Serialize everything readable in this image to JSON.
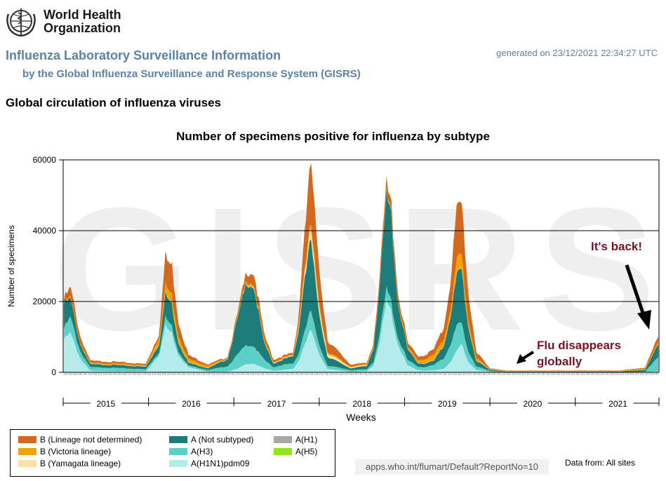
{
  "header": {
    "org_name_line1": "World Health",
    "org_name_line2": "Organization",
    "title": "Influenza Laboratory Surveillance Information",
    "subtitle": "by the Global Influenza Surveillance and Response System (GISRS)",
    "generated": "generated on 23/12/2021 22:34:27 UTC",
    "section_title": "Global circulation of influenza viruses"
  },
  "footer": {
    "report_url": "apps.who.int/flumart/Default?ReportNo=10",
    "data_from": "Data from: All sites"
  },
  "colors": {
    "b_not_determined": "#d2691e",
    "b_victoria": "#f5a20a",
    "b_yamagata": "#fce0a8",
    "a_not_subtyped": "#1b7c79",
    "a_h3": "#5ccfc8",
    "a_h1n1pdm09": "#b4ecec",
    "a_h1": "#a8a8a8",
    "a_h5": "#8ce61a",
    "annotation_text": "#7a1020",
    "grid": "#000000",
    "title_blue": "#5b82a8"
  },
  "chart_data": {
    "type": "area",
    "stacked": true,
    "title": "Number of specimens positive for influenza by subtype",
    "xlabel": "Weeks",
    "ylabel": "Number of specimens",
    "ylim": [
      0,
      60000
    ],
    "yticks": [
      0,
      20000,
      40000,
      60000
    ],
    "year_labels": [
      "2015",
      "2016",
      "2017",
      "2018",
      "2019",
      "2020",
      "2021"
    ],
    "grid": true,
    "watermark": "GISRS",
    "week_start": "2015-W01",
    "week_end": "2021-W51",
    "legend_position": "bottom-left",
    "annotations": [
      {
        "text": "It's back!",
        "week_index": 360
      },
      {
        "text": "Flu disappears globally",
        "week_index": 268
      }
    ],
    "series": [
      {
        "name": "A(H1N1)pdm09",
        "color_key": "a_h1n1pdm09",
        "anchors": [
          [
            0,
            9500
          ],
          [
            4,
            11000
          ],
          [
            10,
            4000
          ],
          [
            16,
            500
          ],
          [
            32,
            300
          ],
          [
            50,
            300
          ],
          [
            58,
            5000
          ],
          [
            62,
            13000
          ],
          [
            66,
            11000
          ],
          [
            70,
            5000
          ],
          [
            76,
            1500
          ],
          [
            88,
            200
          ],
          [
            100,
            300
          ],
          [
            106,
            1000
          ],
          [
            112,
            2500
          ],
          [
            116,
            2500
          ],
          [
            122,
            1200
          ],
          [
            128,
            500
          ],
          [
            134,
            700
          ],
          [
            140,
            1000
          ],
          [
            143,
            3000
          ],
          [
            147,
            8000
          ],
          [
            151,
            12000
          ],
          [
            155,
            6000
          ],
          [
            161,
            1000
          ],
          [
            175,
            200
          ],
          [
            185,
            400
          ],
          [
            189,
            2000
          ],
          [
            193,
            9000
          ],
          [
            197,
            20000
          ],
          [
            200,
            17000
          ],
          [
            204,
            8000
          ],
          [
            210,
            2000
          ],
          [
            216,
            700
          ],
          [
            220,
            500
          ],
          [
            226,
            600
          ],
          [
            232,
            1000
          ],
          [
            236,
            3000
          ],
          [
            240,
            6000
          ],
          [
            243,
            8000
          ],
          [
            247,
            3000
          ],
          [
            252,
            700
          ],
          [
            260,
            200
          ],
          [
            270,
            50
          ],
          [
            340,
            20
          ],
          [
            355,
            50
          ],
          [
            363,
            300
          ]
        ]
      },
      {
        "name": "A(H3)",
        "color_key": "a_h3",
        "anchors": [
          [
            0,
            3000
          ],
          [
            4,
            4500
          ],
          [
            10,
            2000
          ],
          [
            16,
            1000
          ],
          [
            32,
            1000
          ],
          [
            50,
            600
          ],
          [
            58,
            800
          ],
          [
            62,
            2500
          ],
          [
            66,
            2000
          ],
          [
            70,
            1000
          ],
          [
            76,
            500
          ],
          [
            88,
            500
          ],
          [
            100,
            1500
          ],
          [
            106,
            4000
          ],
          [
            112,
            5500
          ],
          [
            116,
            5000
          ],
          [
            122,
            2500
          ],
          [
            128,
            1000
          ],
          [
            134,
            1500
          ],
          [
            140,
            1500
          ],
          [
            143,
            2000
          ],
          [
            147,
            4000
          ],
          [
            151,
            5500
          ],
          [
            155,
            3000
          ],
          [
            161,
            1000
          ],
          [
            175,
            500
          ],
          [
            185,
            500
          ],
          [
            189,
            1000
          ],
          [
            193,
            2500
          ],
          [
            197,
            3500
          ],
          [
            200,
            3000
          ],
          [
            204,
            2000
          ],
          [
            210,
            1500
          ],
          [
            216,
            1000
          ],
          [
            220,
            1000
          ],
          [
            226,
            1500
          ],
          [
            232,
            3000
          ],
          [
            236,
            5000
          ],
          [
            240,
            7000
          ],
          [
            243,
            6000
          ],
          [
            247,
            3000
          ],
          [
            252,
            1000
          ],
          [
            260,
            300
          ],
          [
            270,
            100
          ],
          [
            340,
            50
          ],
          [
            355,
            200
          ],
          [
            363,
            4000
          ]
        ]
      },
      {
        "name": "A(H1)",
        "color_key": "a_h1",
        "anchors": [
          [
            0,
            0
          ],
          [
            363,
            0
          ]
        ]
      },
      {
        "name": "A(H5)",
        "color_key": "a_h5",
        "anchors": [
          [
            0,
            0
          ],
          [
            363,
            0
          ]
        ]
      },
      {
        "name": "A (Not subtyped)",
        "color_key": "a_not_subtyped",
        "anchors": [
          [
            0,
            7000
          ],
          [
            4,
            5000
          ],
          [
            10,
            2000
          ],
          [
            16,
            800
          ],
          [
            32,
            800
          ],
          [
            50,
            700
          ],
          [
            58,
            2200
          ],
          [
            62,
            6500
          ],
          [
            66,
            6000
          ],
          [
            70,
            2500
          ],
          [
            76,
            700
          ],
          [
            88,
            500
          ],
          [
            100,
            2000
          ],
          [
            106,
            10000
          ],
          [
            112,
            18000
          ],
          [
            116,
            17000
          ],
          [
            122,
            5000
          ],
          [
            128,
            1000
          ],
          [
            134,
            1500
          ],
          [
            140,
            2000
          ],
          [
            143,
            6000
          ],
          [
            147,
            15000
          ],
          [
            151,
            20000
          ],
          [
            155,
            10000
          ],
          [
            161,
            2500
          ],
          [
            175,
            500
          ],
          [
            185,
            900
          ],
          [
            189,
            4000
          ],
          [
            193,
            14000
          ],
          [
            197,
            26000
          ],
          [
            200,
            24000
          ],
          [
            204,
            10000
          ],
          [
            210,
            3000
          ],
          [
            216,
            1000
          ],
          [
            220,
            1000
          ],
          [
            226,
            1200
          ],
          [
            232,
            3500
          ],
          [
            236,
            8000
          ],
          [
            240,
            14000
          ],
          [
            243,
            15000
          ],
          [
            247,
            7000
          ],
          [
            252,
            1500
          ],
          [
            260,
            300
          ],
          [
            270,
            100
          ],
          [
            340,
            200
          ],
          [
            355,
            500
          ],
          [
            363,
            3500
          ]
        ]
      },
      {
        "name": "B (Yamagata lineage)",
        "color_key": "b_yamagata",
        "anchors": [
          [
            0,
            100
          ],
          [
            4,
            100
          ],
          [
            16,
            100
          ],
          [
            50,
            100
          ],
          [
            62,
            200
          ],
          [
            66,
            200
          ],
          [
            76,
            100
          ],
          [
            100,
            100
          ],
          [
            112,
            200
          ],
          [
            116,
            300
          ],
          [
            128,
            200
          ],
          [
            140,
            200
          ],
          [
            147,
            2000
          ],
          [
            151,
            3000
          ],
          [
            155,
            2500
          ],
          [
            161,
            1000
          ],
          [
            175,
            300
          ],
          [
            197,
            200
          ],
          [
            216,
            100
          ],
          [
            240,
            200
          ],
          [
            243,
            200
          ],
          [
            260,
            50
          ],
          [
            363,
            50
          ]
        ]
      },
      {
        "name": "B (Victoria lineage)",
        "color_key": "b_victoria",
        "anchors": [
          [
            0,
            200
          ],
          [
            4,
            400
          ],
          [
            16,
            300
          ],
          [
            50,
            300
          ],
          [
            62,
            2500
          ],
          [
            66,
            2500
          ],
          [
            76,
            1000
          ],
          [
            100,
            200
          ],
          [
            112,
            700
          ],
          [
            116,
            600
          ],
          [
            128,
            300
          ],
          [
            140,
            300
          ],
          [
            147,
            1000
          ],
          [
            151,
            1200
          ],
          [
            155,
            1000
          ],
          [
            161,
            500
          ],
          [
            175,
            200
          ],
          [
            197,
            500
          ],
          [
            210,
            500
          ],
          [
            216,
            800
          ],
          [
            226,
            1500
          ],
          [
            236,
            2000
          ],
          [
            240,
            4000
          ],
          [
            243,
            4000
          ],
          [
            247,
            2000
          ],
          [
            252,
            800
          ],
          [
            260,
            100
          ],
          [
            340,
            100
          ],
          [
            355,
            300
          ],
          [
            363,
            500
          ]
        ]
      },
      {
        "name": "B (Lineage not determined)",
        "color_key": "b_not_determined",
        "anchors": [
          [
            0,
            800
          ],
          [
            4,
            2500
          ],
          [
            10,
            1500
          ],
          [
            16,
            500
          ],
          [
            32,
            400
          ],
          [
            50,
            300
          ],
          [
            58,
            800
          ],
          [
            62,
            7500
          ],
          [
            66,
            8000
          ],
          [
            70,
            3500
          ],
          [
            76,
            1000
          ],
          [
            88,
            300
          ],
          [
            100,
            200
          ],
          [
            106,
            500
          ],
          [
            112,
            2200
          ],
          [
            116,
            3000
          ],
          [
            122,
            1500
          ],
          [
            128,
            500
          ],
          [
            134,
            400
          ],
          [
            140,
            400
          ],
          [
            143,
            1500
          ],
          [
            147,
            10000
          ],
          [
            151,
            17000
          ],
          [
            155,
            10000
          ],
          [
            161,
            3000
          ],
          [
            175,
            500
          ],
          [
            185,
            200
          ],
          [
            189,
            400
          ],
          [
            193,
            1000
          ],
          [
            197,
            2000
          ],
          [
            200,
            2000
          ],
          [
            204,
            1500
          ],
          [
            210,
            1000
          ],
          [
            216,
            1000
          ],
          [
            220,
            1000
          ],
          [
            226,
            1500
          ],
          [
            232,
            3000
          ],
          [
            236,
            7000
          ],
          [
            240,
            14000
          ],
          [
            243,
            14000
          ],
          [
            247,
            7000
          ],
          [
            252,
            1500
          ],
          [
            260,
            200
          ],
          [
            270,
            50
          ],
          [
            340,
            50
          ],
          [
            355,
            200
          ],
          [
            363,
            1500
          ]
        ]
      }
    ]
  }
}
